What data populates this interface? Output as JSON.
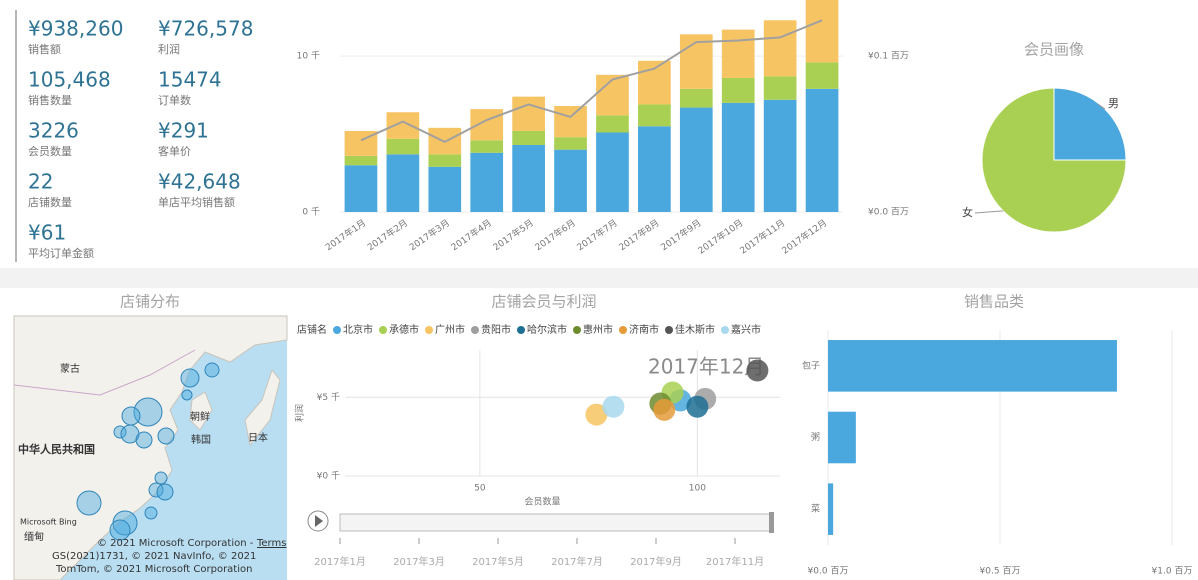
{
  "kpis": [
    {
      "value": "¥938,260",
      "label": "销售额"
    },
    {
      "value": "¥726,578",
      "label": "利润"
    },
    {
      "value": "105,468",
      "label": "销售数量"
    },
    {
      "value": "15474",
      "label": "订单数"
    },
    {
      "value": "3226",
      "label": "会员数量"
    },
    {
      "value": "¥291",
      "label": "客单价"
    },
    {
      "value": "22",
      "label": "店铺数量"
    },
    {
      "value": "¥42,648",
      "label": "单店平均销售额"
    },
    {
      "value": "¥61",
      "label": "平均订单金额"
    }
  ],
  "map": {
    "title": "店铺分布",
    "labels": [
      "蒙古",
      "朝鲜",
      "韩国",
      "日本",
      "中华人民共和国",
      "缅甸"
    ],
    "logo": "Microsoft Bing",
    "attribution": [
      "© 2021 Microsoft Corporation -",
      "Terms",
      "GS(2021)1731, © 2021 NavInfo, © 2021",
      "TomTom, © 2021 Microsoft Corporation"
    ]
  },
  "chart_data": [
    {
      "type": "bar",
      "stacked": true,
      "categories": [
        "2017年1月",
        "2017年2月",
        "2017年3月",
        "2017年4月",
        "2017年5月",
        "2017年6月",
        "2017年7月",
        "2017年8月",
        "2017年9月",
        "2017年10月",
        "2017年11月",
        "2017年12月"
      ],
      "series": [
        {
          "color": "#4aa8de",
          "values": [
            3.0,
            3.7,
            2.9,
            3.8,
            4.3,
            4.0,
            5.1,
            5.5,
            6.7,
            7.0,
            7.2,
            7.9
          ]
        },
        {
          "color": "#a9d052",
          "values": [
            0.6,
            1.0,
            0.8,
            0.8,
            0.9,
            0.8,
            1.1,
            1.4,
            1.2,
            1.6,
            1.5,
            1.7
          ]
        },
        {
          "color": "#f7c463",
          "values": [
            1.6,
            1.7,
            1.7,
            2.0,
            2.2,
            2.0,
            2.6,
            2.8,
            3.5,
            3.1,
            3.6,
            4.2
          ]
        },
        {
          "type": "line",
          "axis": "y2",
          "color": "#a0a0a0",
          "values": [
            0.046,
            0.058,
            0.045,
            0.059,
            0.069,
            0.061,
            0.085,
            0.092,
            0.109,
            0.11,
            0.112,
            0.123
          ]
        }
      ],
      "ylim": [
        0,
        13.6
      ],
      "yticks": [
        {
          "value": 0,
          "label": "0 千"
        },
        {
          "value": 10,
          "label": "10 千"
        }
      ],
      "y2lim": [
        0,
        0.136
      ],
      "y2ticks": [
        {
          "value": 0,
          "label": "¥0.0 百万"
        },
        {
          "value": 0.1,
          "label": "¥0.1 百万"
        }
      ]
    },
    {
      "type": "pie",
      "title": "会员画像",
      "categories": [
        "男",
        "女"
      ],
      "values": [
        25,
        75
      ],
      "colors": [
        "#4aa8de",
        "#a9d052"
      ]
    },
    {
      "type": "scatter",
      "title": "店铺会员与利润",
      "legend_title": "店铺名",
      "annotation": "2017年12月",
      "x_label": "会员数量",
      "y_label": "利润",
      "series": [
        {
          "name": "北京市",
          "color": "#4aa8de",
          "x": [
            96.1
          ],
          "values": [
            4.8
          ]
        },
        {
          "name": "承德市",
          "color": "#a9d052",
          "x": [
            94.3
          ],
          "values": [
            5.3
          ]
        },
        {
          "name": "广州市",
          "color": "#f7c463",
          "x": [
            76.8
          ],
          "values": [
            3.9
          ]
        },
        {
          "name": "贵阳市",
          "color": "#9e9e9e",
          "x": [
            101.8
          ],
          "values": [
            4.9
          ]
        },
        {
          "name": "哈尔滨市",
          "color": "#1f6f94",
          "x": [
            100.0
          ],
          "values": [
            4.4
          ]
        },
        {
          "name": "惠州市",
          "color": "#6e8b2f",
          "x": [
            91.5
          ],
          "values": [
            4.6
          ]
        },
        {
          "name": "济南市",
          "color": "#e59b3a",
          "x": [
            92.4
          ],
          "values": [
            4.2
          ]
        },
        {
          "name": "佳木斯市",
          "color": "#555555",
          "x": [
            113.8
          ],
          "values": [
            6.7
          ]
        },
        {
          "name": "嘉兴市",
          "color": "#a8d8ef",
          "x": [
            80.7
          ],
          "values": [
            4.4
          ]
        }
      ],
      "xlim": [
        19,
        119
      ],
      "xticks": [
        50,
        100
      ],
      "ylim": [
        0,
        8
      ],
      "yticks": [
        {
          "value": 0,
          "label": "¥0 千"
        },
        {
          "value": 5,
          "label": "¥5 千"
        }
      ],
      "play_axis": [
        "2017年1月",
        "2017年3月",
        "2017年5月",
        "2017年7月",
        "2017年9月",
        "2017年11月"
      ]
    },
    {
      "type": "bar",
      "orientation": "horizontal",
      "title": "销售品类",
      "categories": [
        "包子",
        "粥",
        "菜"
      ],
      "values": [
        0.84,
        0.081,
        0.015
      ],
      "color": "#4aa8de",
      "xlim": [
        0,
        1
      ],
      "xticks": [
        {
          "value": 0,
          "label": "¥0.0 百万"
        },
        {
          "value": 0.5,
          "label": "¥0.5 百万"
        },
        {
          "value": 1,
          "label": "¥1.0 百万"
        }
      ]
    }
  ]
}
